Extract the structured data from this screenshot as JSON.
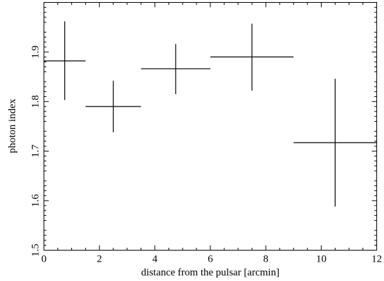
{
  "chart_data": {
    "type": "scatter",
    "xlabel": "distance from the pulsar [arcmin]",
    "ylabel": "photon index",
    "xlim": [
      0,
      12
    ],
    "ylim": [
      1.5,
      2.0
    ],
    "x_ticks": [
      0,
      2,
      4,
      6,
      8,
      10,
      12
    ],
    "x_tick_labels": [
      "0",
      "2",
      "4",
      "6",
      "8",
      "10",
      "12"
    ],
    "y_ticks": [
      1.5,
      1.6,
      1.7,
      1.8,
      1.9
    ],
    "y_tick_labels": [
      "1.5",
      "1.6",
      "1.7",
      "1.8",
      "1.9"
    ],
    "grid": false,
    "points": [
      {
        "x": 0.75,
        "x_low": 0.0,
        "x_high": 1.5,
        "y": 1.882,
        "y_low": 1.803,
        "y_high": 1.962
      },
      {
        "x": 2.5,
        "x_low": 1.5,
        "x_high": 3.5,
        "y": 1.79,
        "y_low": 1.738,
        "y_high": 1.842
      },
      {
        "x": 4.75,
        "x_low": 3.5,
        "x_high": 6.0,
        "y": 1.866,
        "y_low": 1.815,
        "y_high": 1.916
      },
      {
        "x": 7.5,
        "x_low": 6.0,
        "x_high": 9.0,
        "y": 1.89,
        "y_low": 1.822,
        "y_high": 1.957
      },
      {
        "x": 10.5,
        "x_low": 9.0,
        "x_high": 12.0,
        "y": 1.717,
        "y_low": 1.588,
        "y_high": 1.846
      }
    ],
    "colors": {
      "ink": "#000000",
      "background": "#ffffff"
    }
  }
}
